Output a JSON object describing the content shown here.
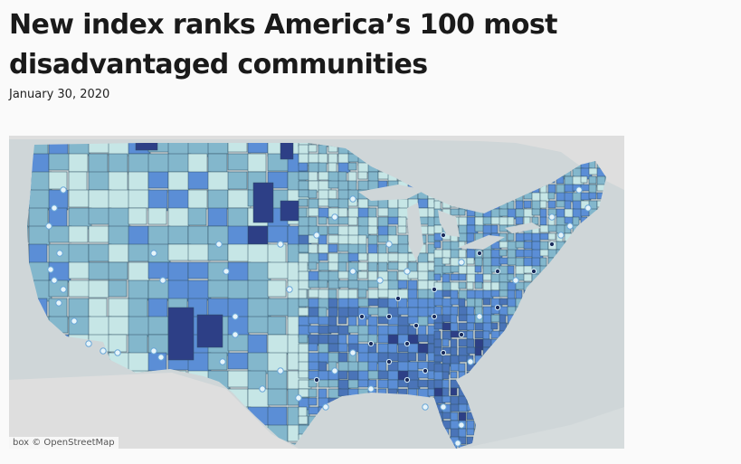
{
  "article": {
    "title": "New index ranks America’s 100 most disadvantaged communities",
    "date": "January 30, 2020"
  },
  "map": {
    "attribution": "box © OpenStreetMap",
    "colors": {
      "water": "#cfd6d8",
      "land_outside": "#dedede",
      "tier_1": "#c6e6e6",
      "tier_2": "#83b7cc",
      "tier_3": "#5b8ed6",
      "tier_4": "#4a74b8",
      "tier_5": "#2d3f86",
      "county_border": "#2e4f63",
      "marker_dark": "#1a2a5a",
      "marker_light": "#e6f4fa"
    }
  }
}
